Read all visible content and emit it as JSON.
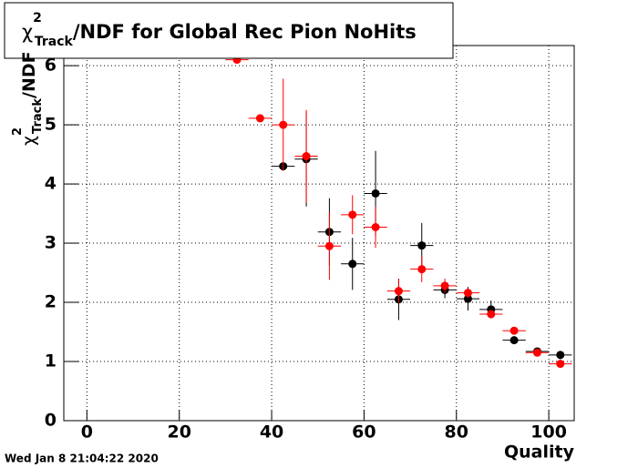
{
  "chart_data": {
    "type": "errorbar",
    "title": {
      "symbol": "χ",
      "sup": "2",
      "sub": "Track",
      "text": "/NDF for Global Rec Pion NoHits"
    },
    "y_label": {
      "symbol": "χ",
      "sup": "2",
      "sub": "Track",
      "text": "/NDF"
    },
    "x_label": "Quality",
    "timestamp": "Wed Jan  8 21:04:22 2020",
    "xlim": [
      -5,
      105.5
    ],
    "ylim": [
      0,
      6.34
    ],
    "xticks": [
      0,
      20,
      40,
      60,
      80,
      100
    ],
    "yticks": [
      0,
      1,
      2,
      3,
      4,
      5,
      6
    ],
    "grid": true,
    "series": [
      {
        "color": "#000000",
        "xerr": 2.5,
        "x": [
          42.5,
          47.5,
          52.5,
          57.5,
          62.5,
          67.5,
          72.5,
          77.5,
          82.5,
          87.5,
          92.5,
          97.5,
          102.5
        ],
        "values": [
          4.3,
          4.42,
          3.19,
          2.65,
          3.84,
          2.05,
          2.96,
          2.21,
          2.06,
          1.88,
          1.36,
          1.17,
          1.11
        ],
        "errors": [
          0.02,
          0.8,
          0.57,
          0.44,
          0.72,
          0.35,
          0.38,
          0.14,
          0.2,
          0.15,
          0.06,
          0.05,
          0.07
        ]
      },
      {
        "color": "#ff0000",
        "xerr": 2.5,
        "x": [
          32.5,
          37.5,
          42.5,
          47.5,
          52.5,
          57.5,
          62.5,
          67.5,
          72.5,
          77.5,
          82.5,
          87.5,
          92.5,
          97.5,
          102.5
        ],
        "values": [
          6.1,
          5.11,
          5.0,
          4.47,
          2.95,
          3.48,
          3.27,
          2.19,
          2.56,
          2.28,
          2.16,
          1.8,
          1.52,
          1.15,
          0.96
        ],
        "errors": [
          0.02,
          0.02,
          0.78,
          0.78,
          0.57,
          0.33,
          0.35,
          0.2,
          0.22,
          0.12,
          0.08,
          0.06,
          0.05,
          0.04,
          0.04
        ]
      }
    ]
  }
}
